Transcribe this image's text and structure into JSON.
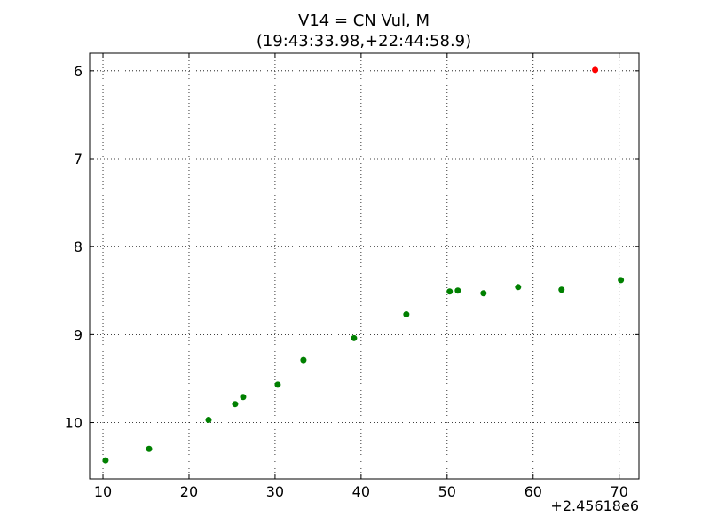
{
  "chart_data": {
    "type": "scatter",
    "title": "V14 = CN Vul, M",
    "subtitle": "(19:43:33.98,+22:44:58.9)",
    "x_offset_label": "+2.45618e6",
    "x": [
      10.3,
      15.36,
      22.27,
      25.36,
      26.29,
      30.31,
      33.3,
      39.18,
      45.26,
      50.3,
      51.24,
      54.23,
      58.25,
      63.3,
      70.2,
      67.2
    ],
    "values": [
      10.43,
      10.3,
      9.97,
      9.79,
      9.71,
      9.57,
      9.29,
      9.04,
      8.77,
      8.51,
      8.5,
      8.53,
      8.46,
      8.49,
      8.38,
      5.99
    ],
    "colors": [
      "#008000",
      "#008000",
      "#008000",
      "#008000",
      "#008000",
      "#008000",
      "#008000",
      "#008000",
      "#008000",
      "#008000",
      "#008000",
      "#008000",
      "#008000",
      "#008000",
      "#008000",
      "#ff0000"
    ],
    "xlim": [
      8.45,
      72.3
    ],
    "xticks": [
      10,
      20,
      30,
      40,
      50,
      60,
      70
    ],
    "ylim": [
      10.64,
      5.8
    ],
    "yticks": [
      6,
      7,
      8,
      9,
      10
    ],
    "grid": true
  }
}
